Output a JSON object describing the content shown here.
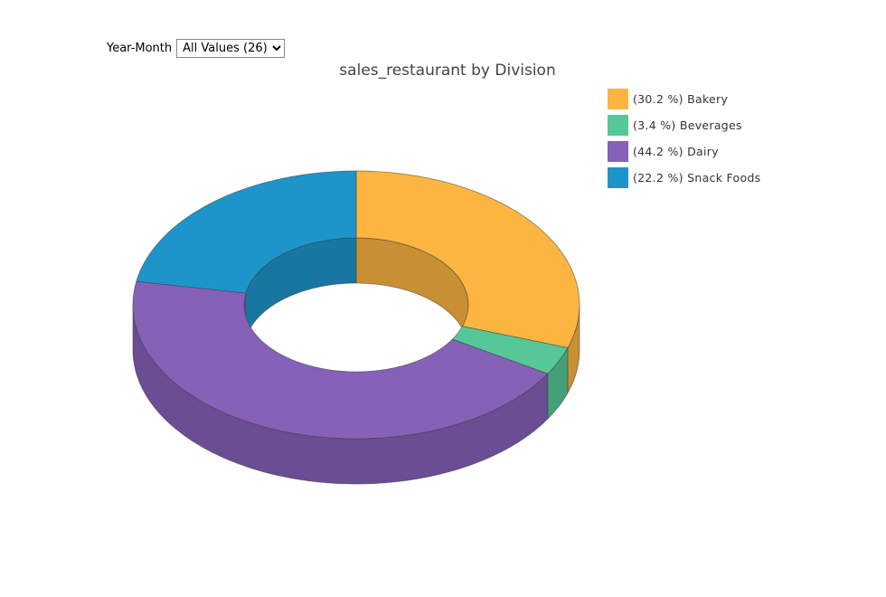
{
  "filter": {
    "label": "Year-Month",
    "selected": "All Values (26)"
  },
  "chart_data": {
    "type": "pie",
    "variant": "3d-donut",
    "title": "sales_restaurant by Division",
    "categories": [
      "Bakery",
      "Beverages",
      "Dairy",
      "Snack Foods"
    ],
    "values": [
      30.2,
      3.4,
      44.2,
      22.2
    ],
    "legend_labels": [
      "(30.2 %) Bakery",
      "(3.4 %) Beverages",
      "(44.2 %) Dairy",
      "(22.2 %) Snack Foods"
    ],
    "colors": [
      "#FBB540",
      "#56C897",
      "#8661B8",
      "#1E95CA"
    ],
    "legend_position": "top-right"
  }
}
